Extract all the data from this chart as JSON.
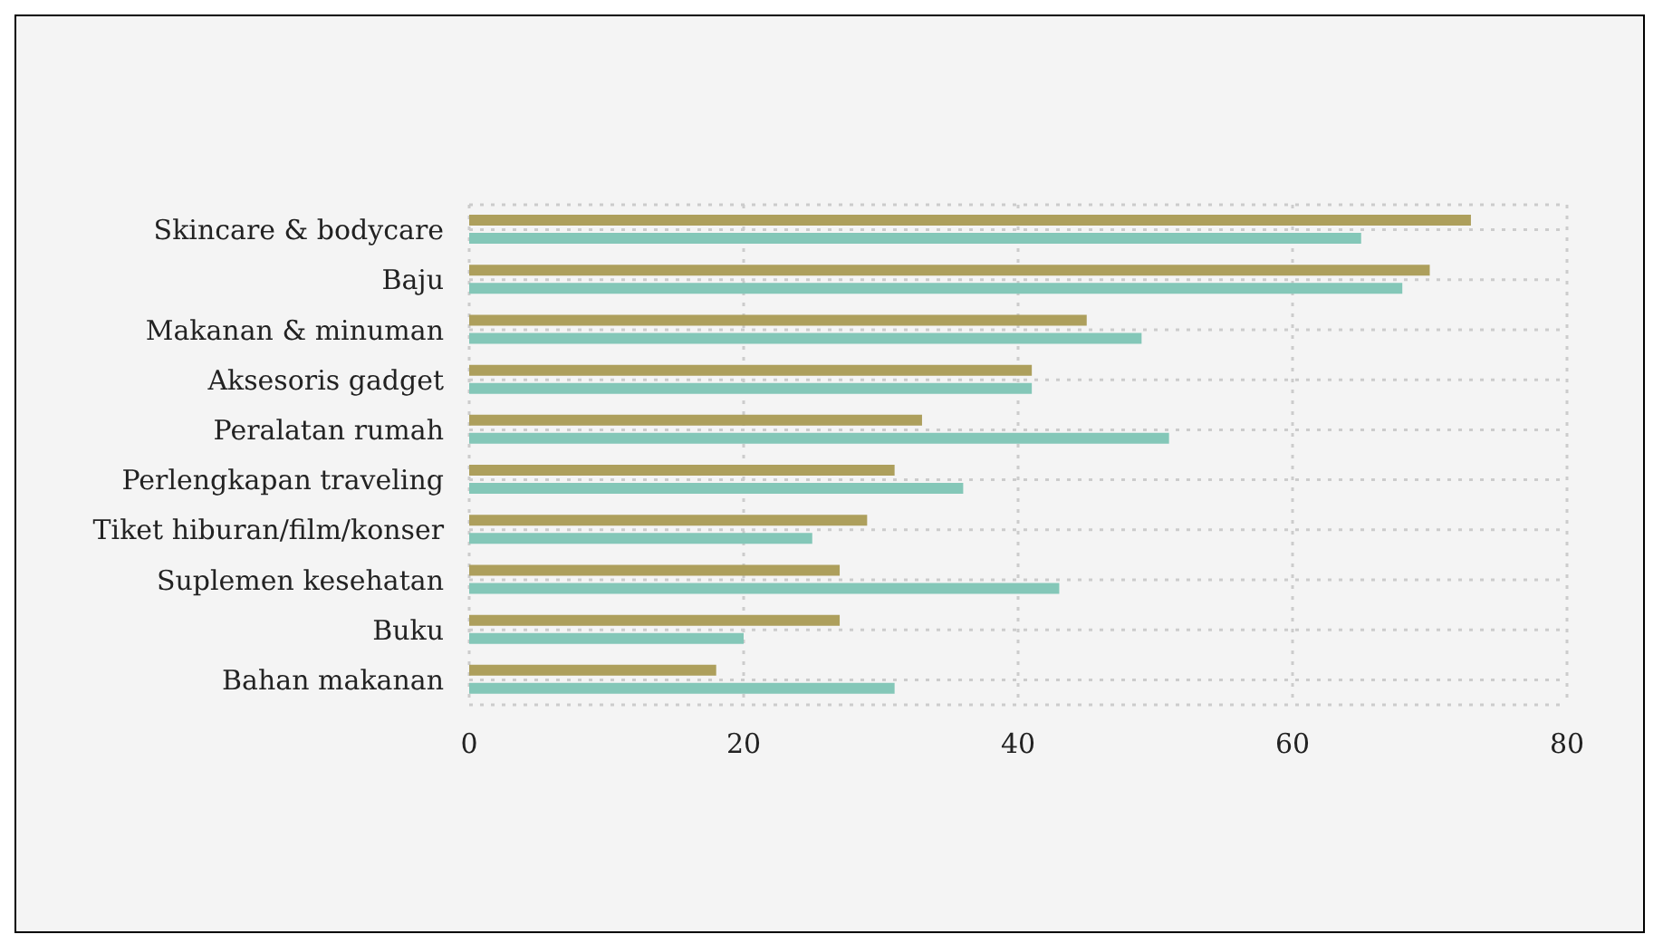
{
  "chart_data": {
    "type": "bar",
    "orientation": "horizontal",
    "categories": [
      "Skincare & bodycare",
      "Baju",
      "Makanan & minuman",
      "Aksesoris gadget",
      "Peralatan rumah",
      "Perlengkapan traveling",
      "Tiket hiburan/film/konser",
      "Suplemen kesehatan",
      "Buku",
      "Bahan makanan"
    ],
    "series": [
      {
        "color": "#ad9f5c",
        "values": [
          73,
          70,
          45,
          41,
          33,
          31,
          29,
          27,
          27,
          18
        ]
      },
      {
        "color": "#84c7b8",
        "values": [
          65,
          68,
          49,
          41,
          51,
          36,
          25,
          43,
          20,
          31
        ]
      }
    ],
    "xlim": [
      0,
      80
    ],
    "xticks": [
      0,
      20,
      40,
      60,
      80
    ],
    "grid": true
  }
}
